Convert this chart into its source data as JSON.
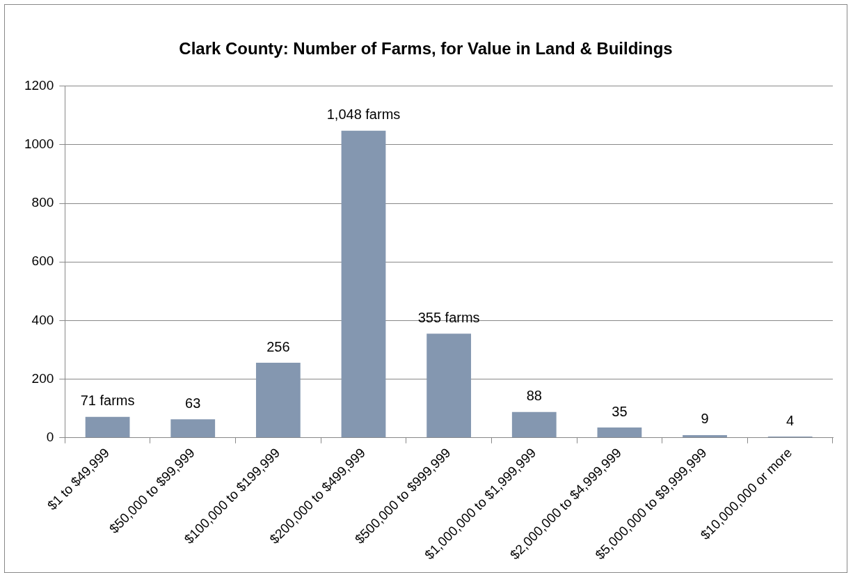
{
  "chart_data": {
    "type": "bar",
    "title": "Clark County: Number of Farms, for Value in Land & Buildings",
    "categories": [
      "$1 to $49,999",
      "$50,000 to $99,999",
      "$100,000 to $199,999",
      "$200,000 to $499,999",
      "$500,000 to $999,999",
      "$1,000,000 to $1,999,999",
      "$2,000,000 to $4,999,999",
      "$5,000,000 to $9,999,999",
      "$10,000,000 or more"
    ],
    "values": [
      71,
      63,
      256,
      1048,
      355,
      88,
      35,
      9,
      4
    ],
    "value_labels": [
      "71 farms",
      "63",
      "256",
      "1,048 farms",
      "355 farms",
      "88",
      "35",
      "9",
      "4"
    ],
    "color": "#8497b0",
    "ylim": [
      0,
      1200
    ],
    "yticks": [
      0,
      200,
      400,
      600,
      800,
      1000,
      1200
    ],
    "grid": "y",
    "legend": false
  }
}
